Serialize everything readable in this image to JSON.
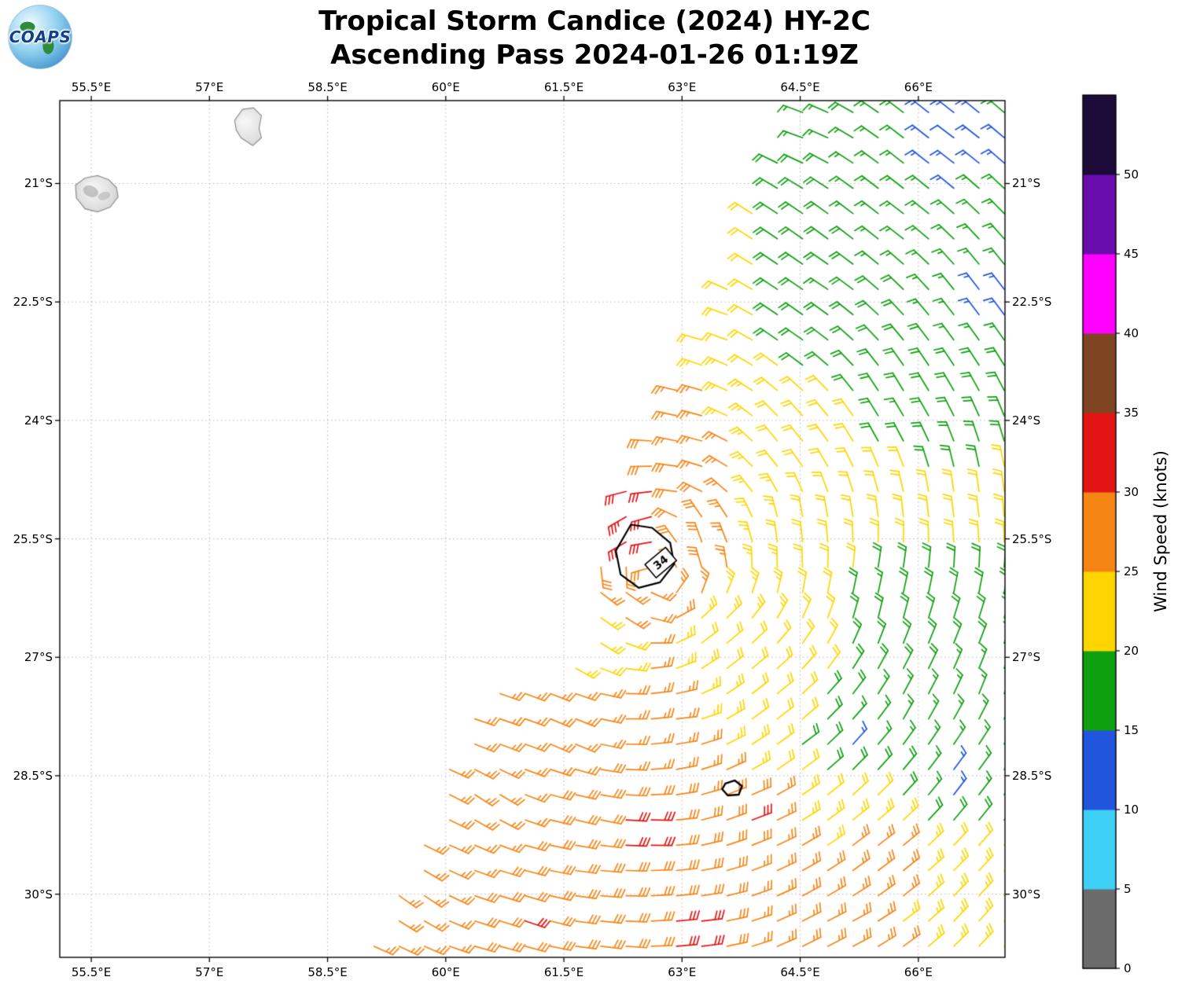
{
  "header": {
    "logo_text": "COAPS",
    "title_line1": "Tropical Storm Candice (2024) HY-2C",
    "title_line2": "Ascending Pass 2024-01-26 01:19Z"
  },
  "chart_data": {
    "type": "wind_barb_map",
    "title": "Tropical Storm Candice (2024) HY-2C",
    "subtitle": "Ascending Pass 2024-01-26 01:19Z",
    "projection": {
      "lon_range": [
        55.1,
        67.1
      ],
      "lat_range": [
        -30.8,
        -19.95
      ]
    },
    "grid": true,
    "x_ticks": [
      {
        "value": 55.5,
        "label": "55.5°E"
      },
      {
        "value": 57.0,
        "label": "57°E"
      },
      {
        "value": 58.5,
        "label": "58.5°E"
      },
      {
        "value": 60.0,
        "label": "60°E"
      },
      {
        "value": 61.5,
        "label": "61.5°E"
      },
      {
        "value": 63.0,
        "label": "63°E"
      },
      {
        "value": 64.5,
        "label": "64.5°E"
      },
      {
        "value": 66.0,
        "label": "66°E"
      }
    ],
    "y_ticks": [
      {
        "value": -21.0,
        "label": "21°S"
      },
      {
        "value": -22.5,
        "label": "22.5°S"
      },
      {
        "value": -24.0,
        "label": "24°S"
      },
      {
        "value": -25.5,
        "label": "25.5°S"
      },
      {
        "value": -27.0,
        "label": "27°S"
      },
      {
        "value": -28.5,
        "label": "28.5°S"
      },
      {
        "value": -30.0,
        "label": "30°S"
      }
    ],
    "colorbar": {
      "label": "Wind Speed (knots)",
      "tick_values": [
        0,
        5,
        10,
        15,
        20,
        25,
        30,
        35,
        40,
        45,
        50
      ],
      "bins": [
        {
          "min": 0,
          "max": 5,
          "color": "#6b6b6b"
        },
        {
          "min": 5,
          "max": 10,
          "color": "#3fd0f5"
        },
        {
          "min": 10,
          "max": 15,
          "color": "#2255dd"
        },
        {
          "min": 15,
          "max": 20,
          "color": "#0fa00f"
        },
        {
          "min": 20,
          "max": 25,
          "color": "#ffd500"
        },
        {
          "min": 25,
          "max": 30,
          "color": "#f58616"
        },
        {
          "min": 30,
          "max": 35,
          "color": "#e31414"
        },
        {
          "min": 35,
          "max": 40,
          "color": "#7f4422"
        },
        {
          "min": 40,
          "max": 45,
          "color": "#ff00ff"
        },
        {
          "min": 45,
          "max": 50,
          "color": "#6a0dad"
        },
        {
          "min": 50,
          "max": 55,
          "color": "#1c0a38"
        }
      ]
    },
    "swath_polygon": [
      [
        64.45,
        -19.9
      ],
      [
        67.15,
        -19.9
      ],
      [
        67.15,
        -30.85
      ],
      [
        58.95,
        -30.85
      ],
      [
        60.5,
        -27.3
      ],
      [
        61.55,
        -27.15
      ],
      [
        61.8,
        -26.5
      ],
      [
        62.0,
        -25.7
      ],
      [
        62.25,
        -24.95
      ],
      [
        62.9,
        -23.35
      ],
      [
        63.45,
        -22.45
      ]
    ],
    "barb_spacing_deg": 0.32,
    "wind_samples_fields": [
      "lon",
      "lat",
      "speed_knots",
      "dir_toward_deg"
    ],
    "wind_samples": [
      [
        66.5,
        -20.5,
        12,
        127
      ],
      [
        64.5,
        -20.3,
        17,
        109
      ],
      [
        65.8,
        -21.5,
        15,
        127
      ],
      [
        66.8,
        -22.5,
        13,
        143
      ],
      [
        64.8,
        -22.3,
        17,
        123
      ],
      [
        63.3,
        -22.8,
        21,
        104
      ],
      [
        64.5,
        -23.0,
        19,
        125
      ],
      [
        63.0,
        -23.8,
        26,
        102
      ],
      [
        62.9,
        -24.3,
        27,
        102
      ],
      [
        65.8,
        -23.8,
        17,
        149
      ],
      [
        64.3,
        -24.3,
        21,
        141
      ],
      [
        62.55,
        -24.45,
        30,
        88
      ],
      [
        62.5,
        -24.9,
        31,
        83
      ],
      [
        62.35,
        -25.25,
        36,
        58
      ],
      [
        61.95,
        -25.15,
        36,
        41
      ],
      [
        63.2,
        -25.5,
        30,
        162
      ],
      [
        64.5,
        -25.5,
        21,
        174
      ],
      [
        66.6,
        -25.2,
        20,
        173
      ],
      [
        62.2,
        -26.3,
        27,
        304
      ],
      [
        61.6,
        -26.7,
        17,
        312
      ],
      [
        63.5,
        -26.8,
        21,
        231
      ],
      [
        65.5,
        -26.3,
        17,
        192
      ],
      [
        66.8,
        -27.3,
        16,
        201
      ],
      [
        65.9,
        -27.6,
        15,
        207
      ],
      [
        65.2,
        -28.0,
        13,
        222
      ],
      [
        66.5,
        -28.6,
        13,
        217
      ],
      [
        64.0,
        -27.5,
        21,
        232
      ],
      [
        64.4,
        -28.2,
        19,
        234
      ],
      [
        62.8,
        -27.8,
        27,
        265
      ],
      [
        61.5,
        -28.0,
        27,
        296
      ],
      [
        60.5,
        -28.8,
        26,
        304
      ],
      [
        61.8,
        -29.0,
        30,
        284
      ],
      [
        62.5,
        -29.2,
        32,
        272
      ],
      [
        63.8,
        -29.0,
        32,
        250
      ],
      [
        65.5,
        -29.5,
        28,
        233
      ],
      [
        59.5,
        -30.0,
        26,
        306
      ],
      [
        61.0,
        -30.3,
        31,
        289
      ],
      [
        62.0,
        -30.6,
        28,
        277
      ],
      [
        63.0,
        -30.4,
        32,
        265
      ],
      [
        65.0,
        -30.5,
        27,
        243
      ],
      [
        66.8,
        -30.3,
        25,
        222
      ]
    ],
    "contours": {
      "r34": {
        "label": "34",
        "label_pos": [
          62.73,
          -25.8
        ],
        "label_rotation_deg": -40,
        "points": [
          [
            62.35,
            -25.32
          ],
          [
            62.62,
            -25.36
          ],
          [
            62.85,
            -25.55
          ],
          [
            62.9,
            -25.82
          ],
          [
            62.72,
            -26.05
          ],
          [
            62.45,
            -26.12
          ],
          [
            62.22,
            -25.95
          ],
          [
            62.16,
            -25.65
          ],
          [
            62.35,
            -25.32
          ]
        ]
      },
      "small": {
        "points": [
          [
            63.55,
            -28.6
          ],
          [
            63.67,
            -28.56
          ],
          [
            63.76,
            -28.63
          ],
          [
            63.72,
            -28.74
          ],
          [
            63.58,
            -28.75
          ],
          [
            63.51,
            -28.67
          ],
          [
            63.55,
            -28.6
          ]
        ]
      }
    },
    "islands": [
      {
        "name": "Reunion",
        "points": [
          [
            55.3,
            -21.02
          ],
          [
            55.42,
            -20.93
          ],
          [
            55.58,
            -20.9
          ],
          [
            55.72,
            -20.95
          ],
          [
            55.82,
            -21.05
          ],
          [
            55.84,
            -21.17
          ],
          [
            55.74,
            -21.3
          ],
          [
            55.58,
            -21.36
          ],
          [
            55.42,
            -21.32
          ],
          [
            55.31,
            -21.18
          ]
        ]
      },
      {
        "name": "Mauritius",
        "points": [
          [
            57.32,
            -20.2
          ],
          [
            57.42,
            -20.06
          ],
          [
            57.56,
            -20.04
          ],
          [
            57.66,
            -20.14
          ],
          [
            57.63,
            -20.3
          ],
          [
            57.66,
            -20.42
          ],
          [
            57.55,
            -20.52
          ],
          [
            57.4,
            -20.42
          ],
          [
            57.34,
            -20.32
          ]
        ]
      }
    ]
  }
}
